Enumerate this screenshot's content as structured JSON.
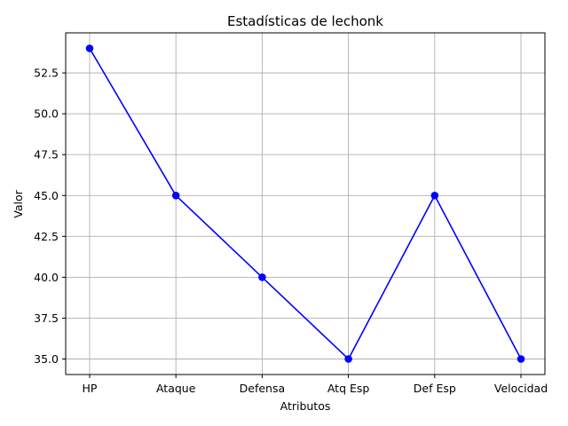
{
  "chart_data": {
    "type": "line",
    "title": "Estadísticas de lechonk",
    "xlabel": "Atributos",
    "ylabel": "Valor",
    "categories": [
      "HP",
      "Ataque",
      "Defensa",
      "Atq Esp",
      "Def Esp",
      "Velocidad"
    ],
    "series": [
      {
        "values": [
          54,
          45,
          40,
          35,
          45,
          35
        ],
        "color": "#0000ff",
        "marker": "circle"
      }
    ],
    "ylim": [
      34.05,
      54.95
    ],
    "yticks": [
      "35.0",
      "37.5",
      "40.0",
      "42.5",
      "45.0",
      "47.5",
      "50.0",
      "52.5"
    ],
    "grid": true
  }
}
